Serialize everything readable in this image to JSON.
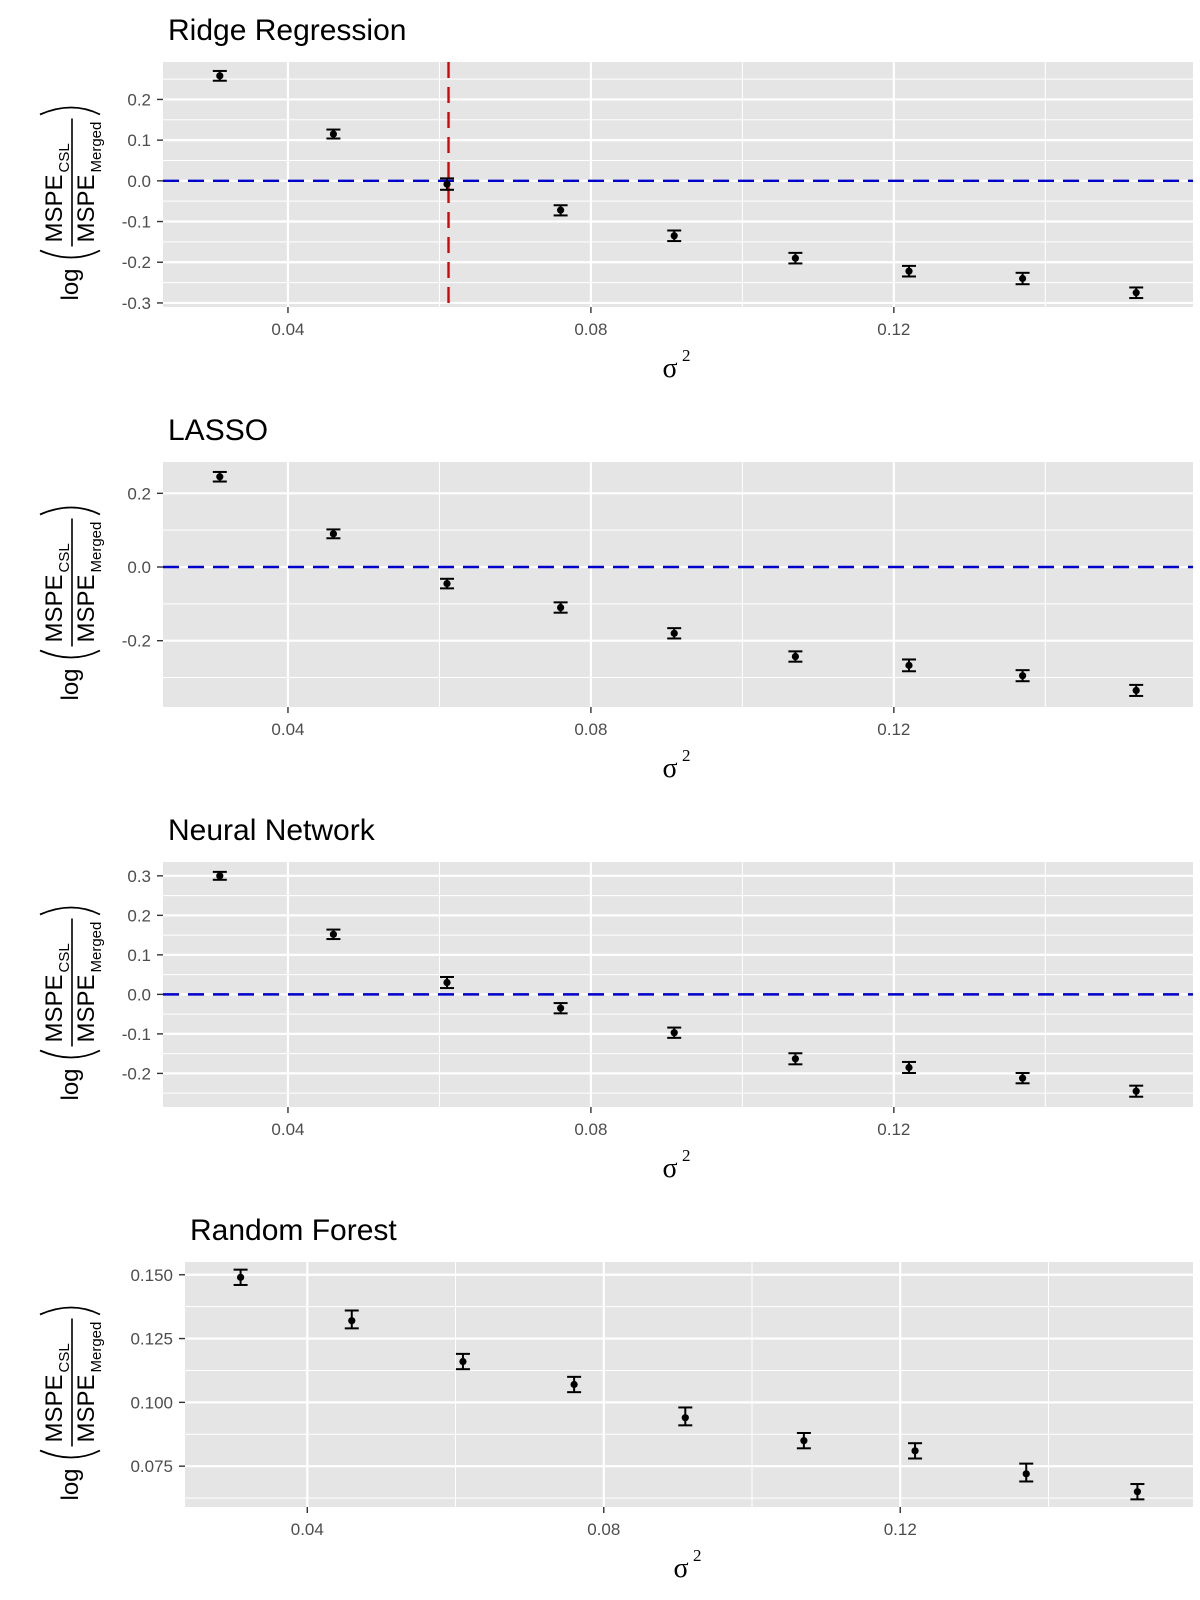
{
  "figure": {
    "y_axis_label": {
      "log": "log",
      "numerator": "MSPE",
      "numerator_sub": "CSL",
      "denominator": "MSPE",
      "denominator_sub": "Merged"
    },
    "x_axis_label": {
      "symbol": "σ",
      "superscript": "2"
    }
  },
  "colors": {
    "panel_background": "#e5e5e5",
    "grid_line": "#ffffff",
    "points": "#000000",
    "zero_reference_line": "#0000cc",
    "threshold_line": "#dd0000"
  },
  "chart_data": [
    {
      "type": "scatter",
      "title": "Ridge Regression",
      "xlabel": "σ^2",
      "ylabel": "log(MSPE_CSL / MSPE_Merged)",
      "x": [
        0.031,
        0.046,
        0.061,
        0.076,
        0.091,
        0.107,
        0.122,
        0.137,
        0.152
      ],
      "y": [
        0.258,
        0.115,
        -0.008,
        -0.072,
        -0.135,
        -0.19,
        -0.222,
        -0.24,
        -0.275
      ],
      "y_lower": [
        0.246,
        0.104,
        -0.022,
        -0.085,
        -0.148,
        -0.203,
        -0.235,
        -0.254,
        -0.288
      ],
      "y_upper": [
        0.27,
        0.126,
        0.006,
        -0.06,
        -0.122,
        -0.177,
        -0.209,
        -0.226,
        -0.262
      ],
      "xlim": [
        0.0235,
        0.1595
      ],
      "ylim": [
        -0.31,
        0.292
      ],
      "xticks": [
        0.04,
        0.08,
        0.12
      ],
      "xtick_labels": [
        "0.04",
        "0.08",
        "0.12"
      ],
      "yticks": [
        -0.3,
        -0.2,
        -0.1,
        0.0,
        0.1,
        0.2
      ],
      "ytick_labels": [
        "-0.3",
        "-0.2",
        "-0.1",
        "0.0",
        "0.1",
        "0.2"
      ],
      "reference_lines": [
        {
          "orientation": "horizontal",
          "value": 0,
          "color": "#0000cc",
          "style": "dashed"
        },
        {
          "orientation": "vertical",
          "value": 0.0612,
          "color": "#dd0000",
          "style": "dashed"
        }
      ],
      "grid": true
    },
    {
      "type": "scatter",
      "title": "LASSO",
      "xlabel": "σ^2",
      "ylabel": "log(MSPE_CSL / MSPE_Merged)",
      "x": [
        0.031,
        0.046,
        0.061,
        0.076,
        0.091,
        0.107,
        0.122,
        0.137,
        0.152
      ],
      "y": [
        0.245,
        0.09,
        -0.045,
        -0.11,
        -0.18,
        -0.243,
        -0.267,
        -0.295,
        -0.335
      ],
      "y_lower": [
        0.232,
        0.078,
        -0.058,
        -0.124,
        -0.194,
        -0.257,
        -0.283,
        -0.31,
        -0.35
      ],
      "y_upper": [
        0.258,
        0.102,
        -0.032,
        -0.096,
        -0.166,
        -0.229,
        -0.251,
        -0.28,
        -0.32
      ],
      "xlim": [
        0.0235,
        0.1595
      ],
      "ylim": [
        -0.38,
        0.285
      ],
      "xticks": [
        0.04,
        0.08,
        0.12
      ],
      "xtick_labels": [
        "0.04",
        "0.08",
        "0.12"
      ],
      "yticks": [
        -0.2,
        0.0,
        0.2
      ],
      "ytick_labels": [
        "-0.2",
        "0.0",
        "0.2"
      ],
      "reference_lines": [
        {
          "orientation": "horizontal",
          "value": 0,
          "color": "#0000cc",
          "style": "dashed"
        }
      ],
      "grid": true
    },
    {
      "type": "scatter",
      "title": "Neural Network",
      "xlabel": "σ^2",
      "ylabel": "log(MSPE_CSL / MSPE_Merged)",
      "x": [
        0.031,
        0.046,
        0.061,
        0.076,
        0.091,
        0.107,
        0.122,
        0.137,
        0.152
      ],
      "y": [
        0.3,
        0.152,
        0.03,
        -0.035,
        -0.097,
        -0.163,
        -0.185,
        -0.212,
        -0.245
      ],
      "y_lower": [
        0.29,
        0.14,
        0.016,
        -0.048,
        -0.11,
        -0.177,
        -0.199,
        -0.225,
        -0.259
      ],
      "y_upper": [
        0.31,
        0.164,
        0.044,
        -0.022,
        -0.084,
        -0.149,
        -0.171,
        -0.199,
        -0.231
      ],
      "xlim": [
        0.0235,
        0.1595
      ],
      "ylim": [
        -0.285,
        0.335
      ],
      "xticks": [
        0.04,
        0.08,
        0.12
      ],
      "xtick_labels": [
        "0.04",
        "0.08",
        "0.12"
      ],
      "yticks": [
        -0.2,
        -0.1,
        0.0,
        0.1,
        0.2,
        0.3
      ],
      "ytick_labels": [
        "-0.2",
        "-0.1",
        "0.0",
        "0.1",
        "0.2",
        "0.3"
      ],
      "reference_lines": [
        {
          "orientation": "horizontal",
          "value": 0,
          "color": "#0000cc",
          "style": "dashed"
        }
      ],
      "grid": true
    },
    {
      "type": "scatter",
      "title": "Random Forest",
      "xlabel": "σ^2",
      "ylabel": "log(MSPE_CSL / MSPE_Merged)",
      "x": [
        0.031,
        0.046,
        0.061,
        0.076,
        0.091,
        0.107,
        0.122,
        0.137,
        0.152
      ],
      "y": [
        0.149,
        0.132,
        0.116,
        0.107,
        0.094,
        0.085,
        0.081,
        0.072,
        0.065
      ],
      "y_lower": [
        0.146,
        0.129,
        0.113,
        0.104,
        0.091,
        0.082,
        0.078,
        0.069,
        0.062
      ],
      "y_upper": [
        0.152,
        0.136,
        0.119,
        0.11,
        0.098,
        0.088,
        0.084,
        0.076,
        0.068
      ],
      "xlim": [
        0.0235,
        0.1595
      ],
      "ylim": [
        0.059,
        0.155
      ],
      "xticks": [
        0.04,
        0.08,
        0.12
      ],
      "xtick_labels": [
        "0.04",
        "0.08",
        "0.12"
      ],
      "yticks": [
        0.075,
        0.1,
        0.125,
        0.15
      ],
      "ytick_labels": [
        "0.075",
        "0.100",
        "0.125",
        "0.150"
      ],
      "reference_lines": [],
      "grid": true
    }
  ]
}
